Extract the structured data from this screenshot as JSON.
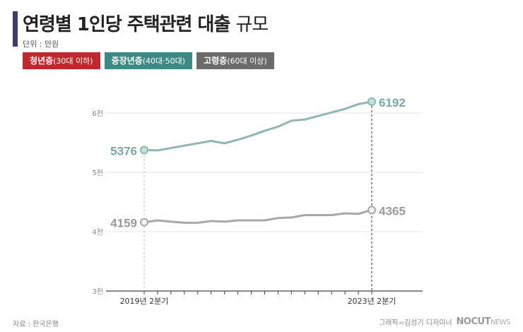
{
  "title": {
    "bold": "연령별 1인당 주택관련 대출",
    "light": "규모"
  },
  "unit": "단위 : 만원",
  "legend": [
    {
      "label": "청년층",
      "sub": "(30대 이하)",
      "color": "#c1282d"
    },
    {
      "label": "중장년층",
      "sub": "(40대·50대)",
      "color": "#3d8a85"
    },
    {
      "label": "고령층",
      "sub": "(60대 이상)",
      "color": "#6b6b6b"
    }
  ],
  "source": "자료 : 한국은행",
  "credit": "그래픽=김성기 디자이너",
  "logo": {
    "main": "NOCUT",
    "sub": "NEWS"
  },
  "colors": {
    "middle": "#8fb7b1",
    "elderly": "#a8a8a8",
    "middle_marker": "#bfe3de",
    "elderly_marker": "#f2f2f2"
  },
  "chart_data": {
    "type": "line",
    "x_labels": {
      "start": "2019년 2분기",
      "end": "2023년 2분기"
    },
    "y_ticks": [
      "3천",
      "4천",
      "5천",
      "6천"
    ],
    "ylim": [
      3000,
      6300
    ],
    "grid": true,
    "series": [
      {
        "name": "중장년층",
        "values": [
          5376,
          5370,
          5410,
          5450,
          5490,
          5530,
          5490,
          5550,
          5620,
          5700,
          5770,
          5870,
          5890,
          5950,
          6010,
          6070,
          6150,
          6192
        ],
        "start_label": "5376",
        "end_label": "6192"
      },
      {
        "name": "고령층",
        "values": [
          4159,
          4190,
          4170,
          4150,
          4150,
          4180,
          4170,
          4190,
          4190,
          4190,
          4230,
          4240,
          4280,
          4280,
          4280,
          4310,
          4300,
          4365
        ],
        "start_label": "4159",
        "end_label": "4365"
      }
    ]
  }
}
